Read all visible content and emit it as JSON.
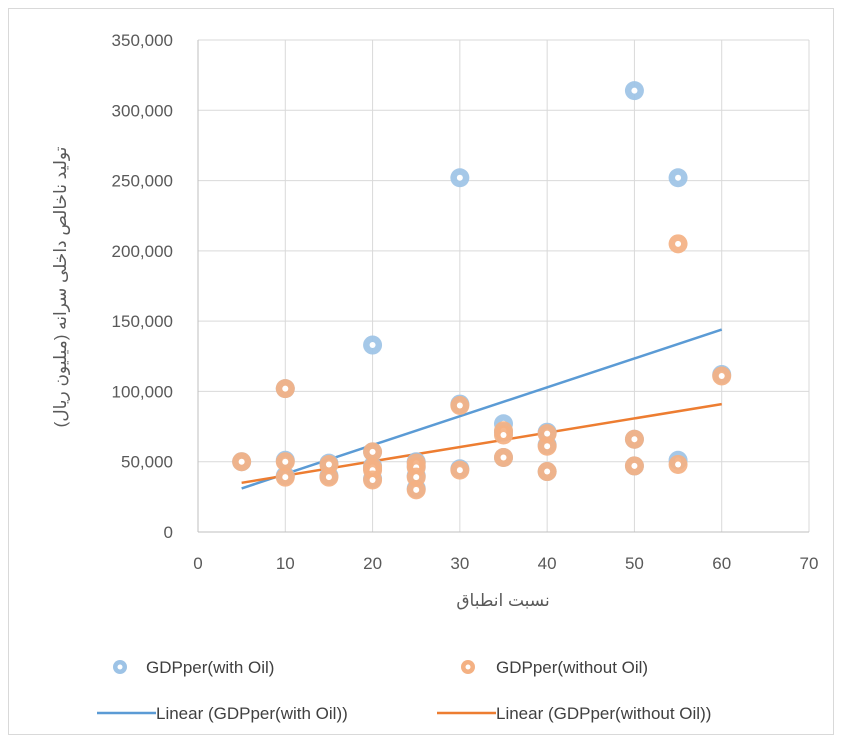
{
  "chart_data": {
    "type": "scatter",
    "title": "",
    "xlabel": "نسبت انطباق",
    "ylabel": "تولید ناخالص داخلی سرانه (میلیون ریال)",
    "xlim": [
      0,
      70
    ],
    "ylim": [
      0,
      350000
    ],
    "x_ticks": [
      "0",
      "10",
      "20",
      "30",
      "40",
      "50",
      "60",
      "70"
    ],
    "y_ticks": [
      "0",
      "50,000",
      "100,000",
      "150,000",
      "200,000",
      "250,000",
      "300,000",
      "350,000"
    ],
    "grid": true,
    "legend_position": "bottom",
    "series": [
      {
        "name": "GDPper(with Oil)",
        "color": "#9dc3e6",
        "points": [
          [
            5,
            50000
          ],
          [
            10,
            102000
          ],
          [
            10,
            51000
          ],
          [
            10,
            40000
          ],
          [
            15,
            49000
          ],
          [
            15,
            40000
          ],
          [
            20,
            133000
          ],
          [
            20,
            57000
          ],
          [
            20,
            47000
          ],
          [
            20,
            45000
          ],
          [
            20,
            38000
          ],
          [
            25,
            50000
          ],
          [
            25,
            47000
          ],
          [
            25,
            40000
          ],
          [
            25,
            31000
          ],
          [
            30,
            252000
          ],
          [
            30,
            91000
          ],
          [
            30,
            45000
          ],
          [
            35,
            77000
          ],
          [
            35,
            71000
          ],
          [
            35,
            53000
          ],
          [
            40,
            71000
          ],
          [
            40,
            62000
          ],
          [
            40,
            43000
          ],
          [
            50,
            314000
          ],
          [
            50,
            66000
          ],
          [
            50,
            47000
          ],
          [
            55,
            252000
          ],
          [
            55,
            51000
          ],
          [
            60,
            112000
          ]
        ]
      },
      {
        "name": "GDPper(without Oil)",
        "color": "#f4b183",
        "points": [
          [
            5,
            50000
          ],
          [
            10,
            102000
          ],
          [
            10,
            50000
          ],
          [
            10,
            39000
          ],
          [
            15,
            48000
          ],
          [
            15,
            39000
          ],
          [
            20,
            57000
          ],
          [
            20,
            46000
          ],
          [
            20,
            44000
          ],
          [
            20,
            37000
          ],
          [
            25,
            49000
          ],
          [
            25,
            46000
          ],
          [
            25,
            39000
          ],
          [
            25,
            30000
          ],
          [
            30,
            90000
          ],
          [
            30,
            44000
          ],
          [
            35,
            72000
          ],
          [
            35,
            69000
          ],
          [
            35,
            53000
          ],
          [
            40,
            70000
          ],
          [
            40,
            61000
          ],
          [
            40,
            43000
          ],
          [
            50,
            66000
          ],
          [
            50,
            47000
          ],
          [
            55,
            205000
          ],
          [
            55,
            48000
          ],
          [
            60,
            111000
          ]
        ]
      },
      {
        "name": "Linear (GDPper(with Oil))",
        "type": "line",
        "color": "#5b9bd5",
        "x": [
          5,
          60
        ],
        "y": [
          31000,
          144000
        ]
      },
      {
        "name": "Linear (GDPper(without Oil))",
        "type": "line",
        "color": "#ed7d31",
        "x": [
          5,
          60
        ],
        "y": [
          35000,
          91000
        ]
      }
    ]
  }
}
